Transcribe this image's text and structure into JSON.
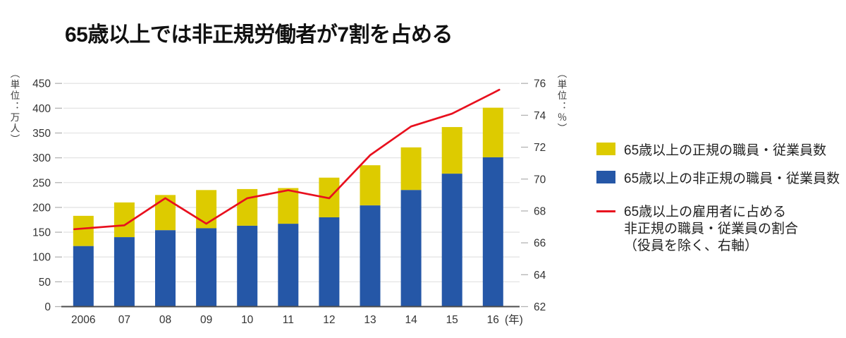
{
  "title": "65歳以上では非正規労働者が7割を占める",
  "chart_data": {
    "type": "bar",
    "subtype": "stacked-bars-with-line",
    "categories": [
      "2006",
      "07",
      "08",
      "09",
      "10",
      "11",
      "12",
      "13",
      "14",
      "15",
      "16"
    ],
    "x_axis_suffix": "(年)",
    "series": [
      {
        "name": "65歳以上の正規の職員・従業員数",
        "type": "bar",
        "stack_position": "top",
        "color": "#ddcb00",
        "values": [
          61,
          70,
          71,
          77,
          74,
          72,
          80,
          81,
          86,
          94,
          100
        ]
      },
      {
        "name": "65歳以上の非正規の職員・従業員数",
        "type": "bar",
        "stack_position": "bottom",
        "color": "#2557a7",
        "values": [
          122,
          140,
          154,
          158,
          163,
          167,
          180,
          204,
          235,
          268,
          301
        ]
      },
      {
        "name": "65歳以上の雇用者に占める非正規の職員・従業員の割合（役員を除く、右軸）",
        "type": "line",
        "axis": "right",
        "color": "#e8101e",
        "values": [
          66.9,
          67.1,
          68.8,
          67.2,
          68.8,
          69.3,
          68.8,
          71.5,
          73.3,
          74.1,
          75.4
        ]
      }
    ],
    "left_axis": {
      "unit": "（単位：万人）",
      "min": 0,
      "max": 450,
      "step": 50,
      "tick_labels": [
        "0",
        "50",
        "100",
        "150",
        "200",
        "250",
        "300",
        "350",
        "400",
        "450"
      ]
    },
    "right_axis": {
      "unit": "（単位：％）",
      "min": 62,
      "max": 76,
      "step": 2,
      "tick_labels": [
        "62",
        "64",
        "66",
        "68",
        "70",
        "72",
        "74",
        "76"
      ]
    },
    "grid": "horizontal-only",
    "legend_position": "right"
  },
  "legend": {
    "items": [
      {
        "swatch": "yellow-square",
        "label": "65歳以上の正規の職員・従業員数"
      },
      {
        "swatch": "blue-square",
        "label": "65歳以上の非正規の職員・従業員数"
      },
      {
        "swatch": "red-line",
        "label": "65歳以上の雇用者に占める\n非正規の職員・従業員の割合\n（役員を除く、右軸）"
      }
    ]
  },
  "colors": {
    "regular_bar": "#ddcb00",
    "nonregular_bar": "#2557a7",
    "ratio_line": "#e8101e",
    "gridline": "#e4e4e4",
    "tick_mark": "#b3b3b3",
    "baseline": "#4d4d4d",
    "axis_text": "#333333"
  }
}
